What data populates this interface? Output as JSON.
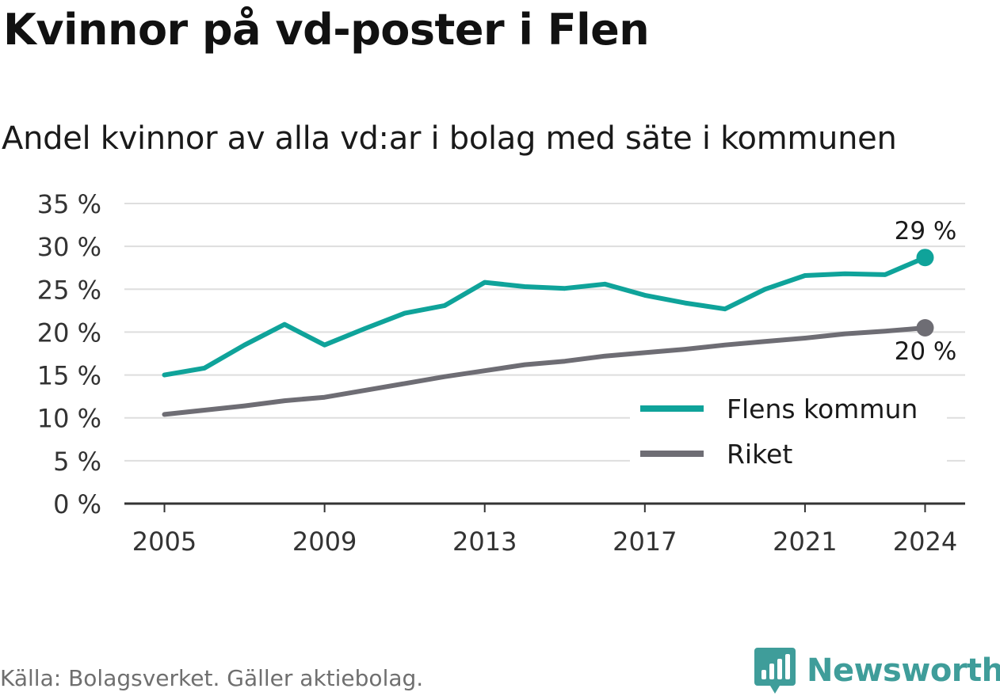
{
  "title": "Kvinnor på vd-poster i Flen",
  "subtitle": "Andel kvinnor av alla vd:ar i bolag med säte i kommunen",
  "source": "Källa: Bolagsverket. Gäller aktiebolag.",
  "brand": {
    "name": "Newsworthy",
    "icon": "newsworthy-logo-icon",
    "color": "#3f9d9a"
  },
  "chart_data": {
    "type": "line",
    "x": [
      2005,
      2006,
      2007,
      2008,
      2009,
      2010,
      2011,
      2012,
      2013,
      2014,
      2015,
      2016,
      2017,
      2018,
      2019,
      2020,
      2021,
      2022,
      2023,
      2024
    ],
    "xticks": [
      "2005",
      "2009",
      "2013",
      "2017",
      "2021",
      "2024"
    ],
    "xtick_values": [
      2005,
      2009,
      2013,
      2017,
      2021,
      2024
    ],
    "yticks": [
      "0 %",
      "5 %",
      "10 %",
      "15 %",
      "20 %",
      "25 %",
      "30 %",
      "35 %"
    ],
    "ytick_values": [
      0,
      5,
      10,
      15,
      20,
      25,
      30,
      35
    ],
    "ylim": [
      0,
      35
    ],
    "xlim": [
      2004,
      2025
    ],
    "grid": true,
    "legend_position": "bottom-right",
    "series": [
      {
        "name": "Flens kommun",
        "color": "#0fa39a",
        "values": [
          15.0,
          15.8,
          18.5,
          20.9,
          18.5,
          20.4,
          22.2,
          23.1,
          25.8,
          25.3,
          25.1,
          25.6,
          24.3,
          23.4,
          22.7,
          25.0,
          26.6,
          26.8,
          26.7,
          28.7
        ],
        "end_label": "29 %"
      },
      {
        "name": "Riket",
        "color": "#6e6d74",
        "values": [
          10.4,
          10.9,
          11.4,
          12.0,
          12.4,
          13.2,
          14.0,
          14.8,
          15.5,
          16.2,
          16.6,
          17.2,
          17.6,
          18.0,
          18.5,
          18.9,
          19.3,
          19.8,
          20.1,
          20.5
        ],
        "end_label": "20 %"
      }
    ]
  }
}
